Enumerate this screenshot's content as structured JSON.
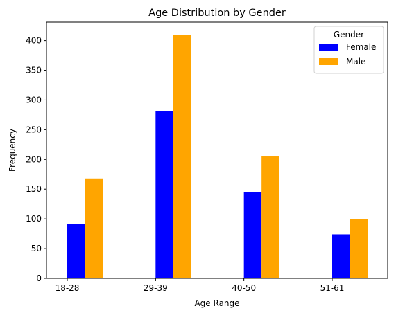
{
  "chart_data": {
    "type": "bar",
    "title": "Age Distribution by Gender",
    "xlabel": "Age Range",
    "ylabel": "Frequency",
    "categories": [
      "18-28",
      "29-39",
      "40-50",
      "51-61"
    ],
    "series": [
      {
        "name": "Female",
        "color": "#0000ff",
        "values": [
          91,
          281,
          145,
          74
        ]
      },
      {
        "name": "Male",
        "color": "#ffa500",
        "values": [
          168,
          410,
          205,
          100
        ]
      }
    ],
    "ylim": [
      0,
      431
    ],
    "yticks": [
      0,
      50,
      100,
      150,
      200,
      250,
      300,
      350,
      400
    ],
    "grid": false,
    "legend": {
      "title": "Gender",
      "placement": "top-right"
    }
  }
}
